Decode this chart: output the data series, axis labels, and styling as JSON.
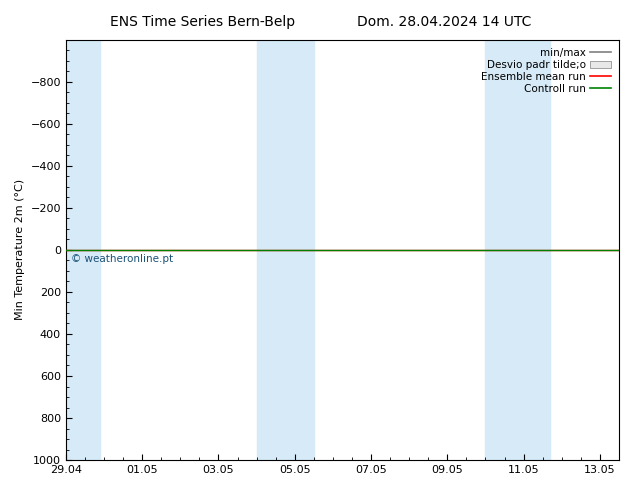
{
  "title_left": "ENS Time Series Bern-Belp",
  "title_right": "Dom. 28.04.2024 14 UTC",
  "ylabel": "Min Temperature 2m (°C)",
  "ylim_top": -1000,
  "ylim_bottom": 1000,
  "yticks": [
    -800,
    -600,
    -400,
    -200,
    0,
    200,
    400,
    600,
    800,
    1000
  ],
  "xlim_left": 0,
  "xlim_right": 14.5,
  "xtick_positions": [
    0,
    2,
    4,
    6,
    8,
    10,
    12,
    14
  ],
  "xtick_labels": [
    "29.04",
    "01.05",
    "03.05",
    "05.05",
    "07.05",
    "09.05",
    "11.05",
    "13.05"
  ],
  "blue_bands": [
    [
      0.0,
      0.9
    ],
    [
      5.0,
      5.7
    ],
    [
      5.7,
      6.5
    ],
    [
      11.0,
      11.7
    ],
    [
      11.7,
      12.7
    ]
  ],
  "green_line_y": 0,
  "red_line_y": 0,
  "watermark": "© weatheronline.pt",
  "legend_labels": [
    "min/max",
    "Desvio padr tilde;o",
    "Ensemble mean run",
    "Controll run"
  ],
  "background_color": "#ffffff",
  "band_color": "#d6eaf8",
  "title_fontsize": 10,
  "axis_fontsize": 8,
  "tick_fontsize": 8,
  "legend_fontsize": 7.5
}
